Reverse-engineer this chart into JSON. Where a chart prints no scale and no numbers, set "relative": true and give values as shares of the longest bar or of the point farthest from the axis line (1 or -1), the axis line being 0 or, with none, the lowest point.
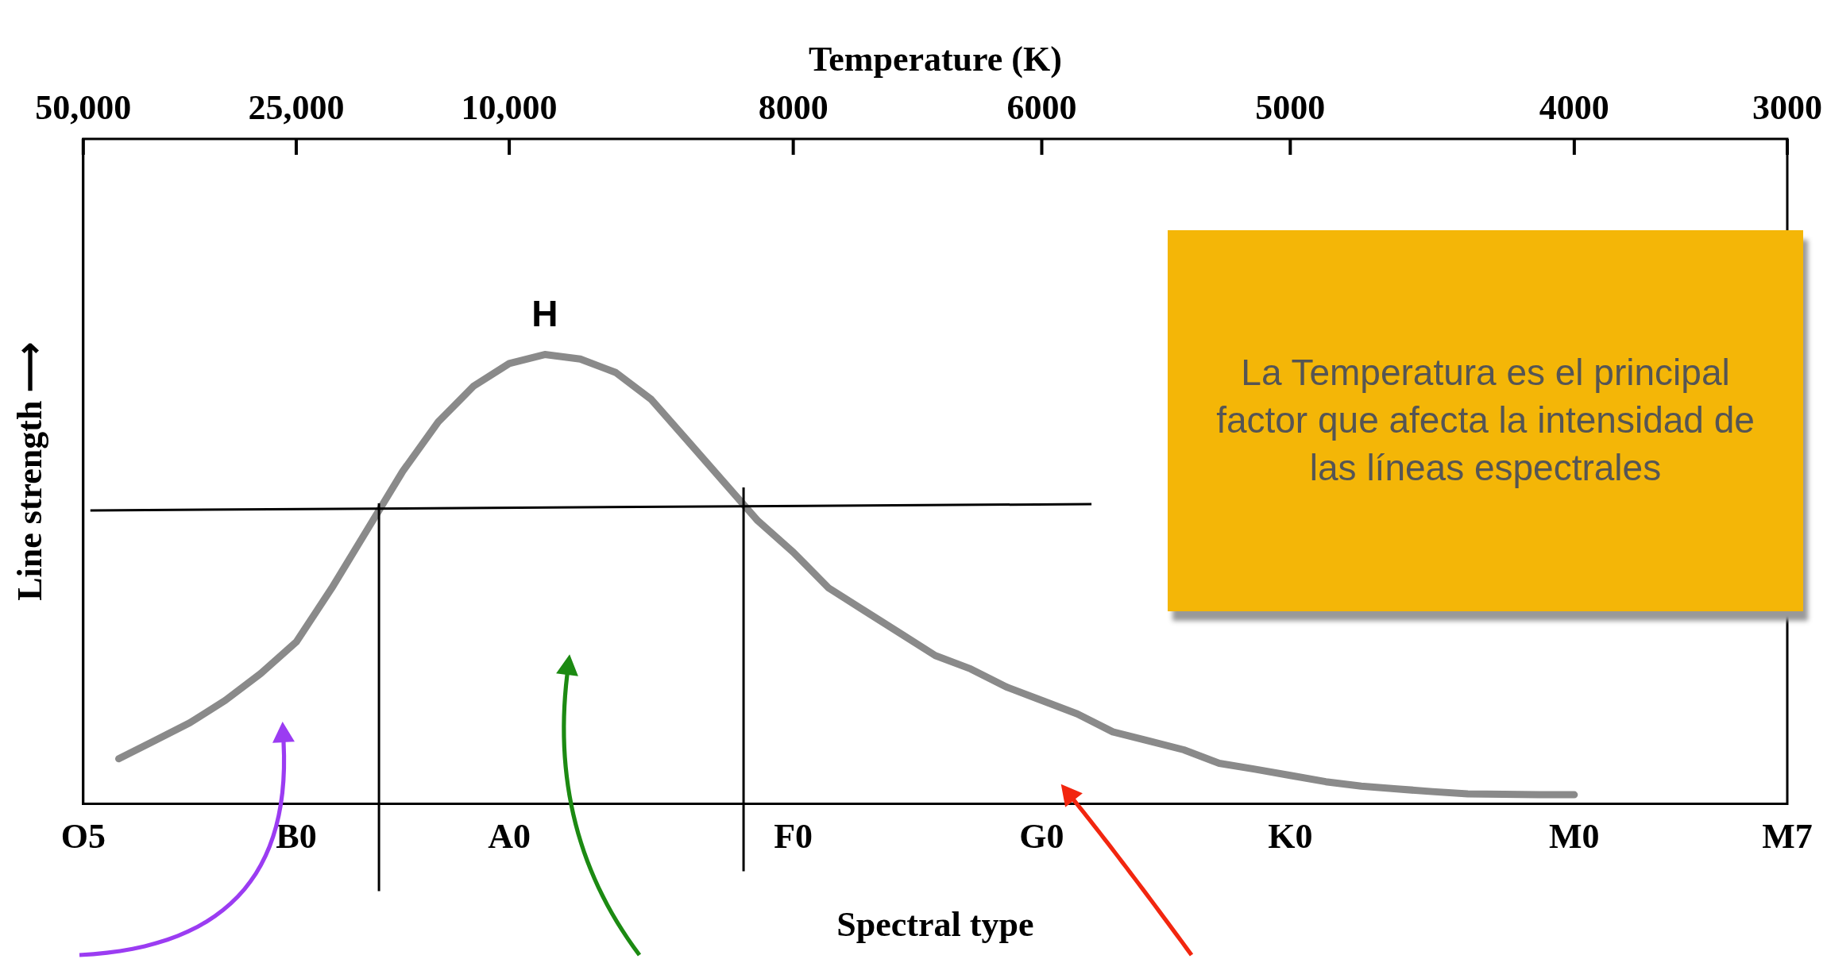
{
  "chart_data": {
    "type": "line",
    "xlabel": "Spectral type",
    "x2label": "Temperature (K)",
    "ylabel": "Line strength ⟶",
    "relative": true,
    "legend": false,
    "marker": "none",
    "categories": [
      "O5",
      null,
      null,
      null,
      null,
      null,
      "B0",
      null,
      null,
      null,
      null,
      null,
      "A0",
      null,
      null,
      null,
      null,
      null,
      null,
      null,
      "F0",
      null,
      null,
      null,
      null,
      null,
      null,
      "G0",
      null,
      null,
      null,
      null,
      null,
      null,
      "K0",
      null,
      null,
      null,
      null,
      null,
      null,
      null,
      "M0",
      null,
      null,
      null,
      null,
      null,
      "M7"
    ],
    "series": [
      {
        "name": "H",
        "color": "#8a8a8a",
        "values": [
          null,
          0.1,
          0.14,
          0.18,
          0.23,
          0.29,
          0.36,
          0.48,
          0.61,
          0.74,
          0.85,
          0.93,
          0.98,
          1.0,
          0.99,
          0.96,
          0.9,
          0.81,
          0.72,
          0.63,
          0.56,
          0.48,
          0.43,
          0.38,
          0.33,
          0.3,
          0.26,
          0.23,
          0.2,
          0.16,
          0.14,
          0.12,
          0.09,
          0.077,
          0.063,
          0.049,
          0.039,
          0.033,
          0.027,
          0.022,
          0.021,
          0.02,
          0.02,
          null,
          null,
          null,
          null,
          null,
          null
        ]
      }
    ],
    "annotations": [
      "50,000",
      "25,000",
      "10,000",
      "8000",
      "6000",
      "5000",
      "4000",
      "3000",
      "La Temperatura es el principal factor que afecta la intensidad de las líneas espectrales"
    ]
  }
}
